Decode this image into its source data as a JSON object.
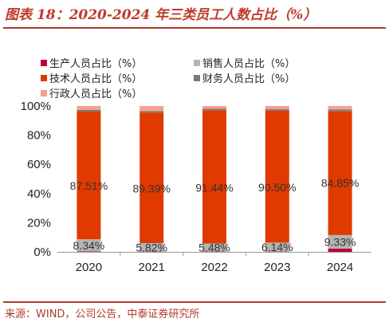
{
  "title": "图表 18：2020-2024 年三类员工人数占比（%）",
  "source": "来源：WIND，公司公告，中泰证券研究所",
  "colors": {
    "production": "#c00031",
    "sales": "#b5b5b5",
    "technical": "#e03a00",
    "finance": "#7a7a7a",
    "admin": "#f4a090",
    "accent": "#b03a2e"
  },
  "chart_data": {
    "type": "bar",
    "stacked": true,
    "categories": [
      "2020",
      "2021",
      "2022",
      "2023",
      "2024"
    ],
    "ylim": [
      0,
      100
    ],
    "yticks": [
      "0%",
      "20%",
      "40%",
      "60%",
      "80%",
      "100%"
    ],
    "legend_position": "top",
    "series": [
      {
        "name": "生产人员占比（%）",
        "values": [
          0.3,
          0.2,
          0.2,
          0.2,
          2.2
        ]
      },
      {
        "name": "销售人员占比（%）",
        "values": [
          8.34,
          5.82,
          5.48,
          6.14,
          9.33
        ]
      },
      {
        "name": "技术人员占比（%）",
        "values": [
          87.51,
          89.39,
          91.44,
          90.5,
          84.85
        ]
      },
      {
        "name": "财务人员占比（%）",
        "values": [
          1.2,
          1.1,
          1.0,
          1.1,
          1.2
        ]
      },
      {
        "name": "行政人员占比（%）",
        "values": [
          2.65,
          3.49,
          1.88,
          2.06,
          2.42
        ]
      }
    ],
    "data_labels": {
      "sales": [
        "8.34%",
        "5.82%",
        "5.48%",
        "6.14%",
        "9.33%"
      ],
      "technical": [
        "87.51%",
        "89.39%",
        "91.44%",
        "90.50%",
        "84.85%"
      ]
    }
  }
}
